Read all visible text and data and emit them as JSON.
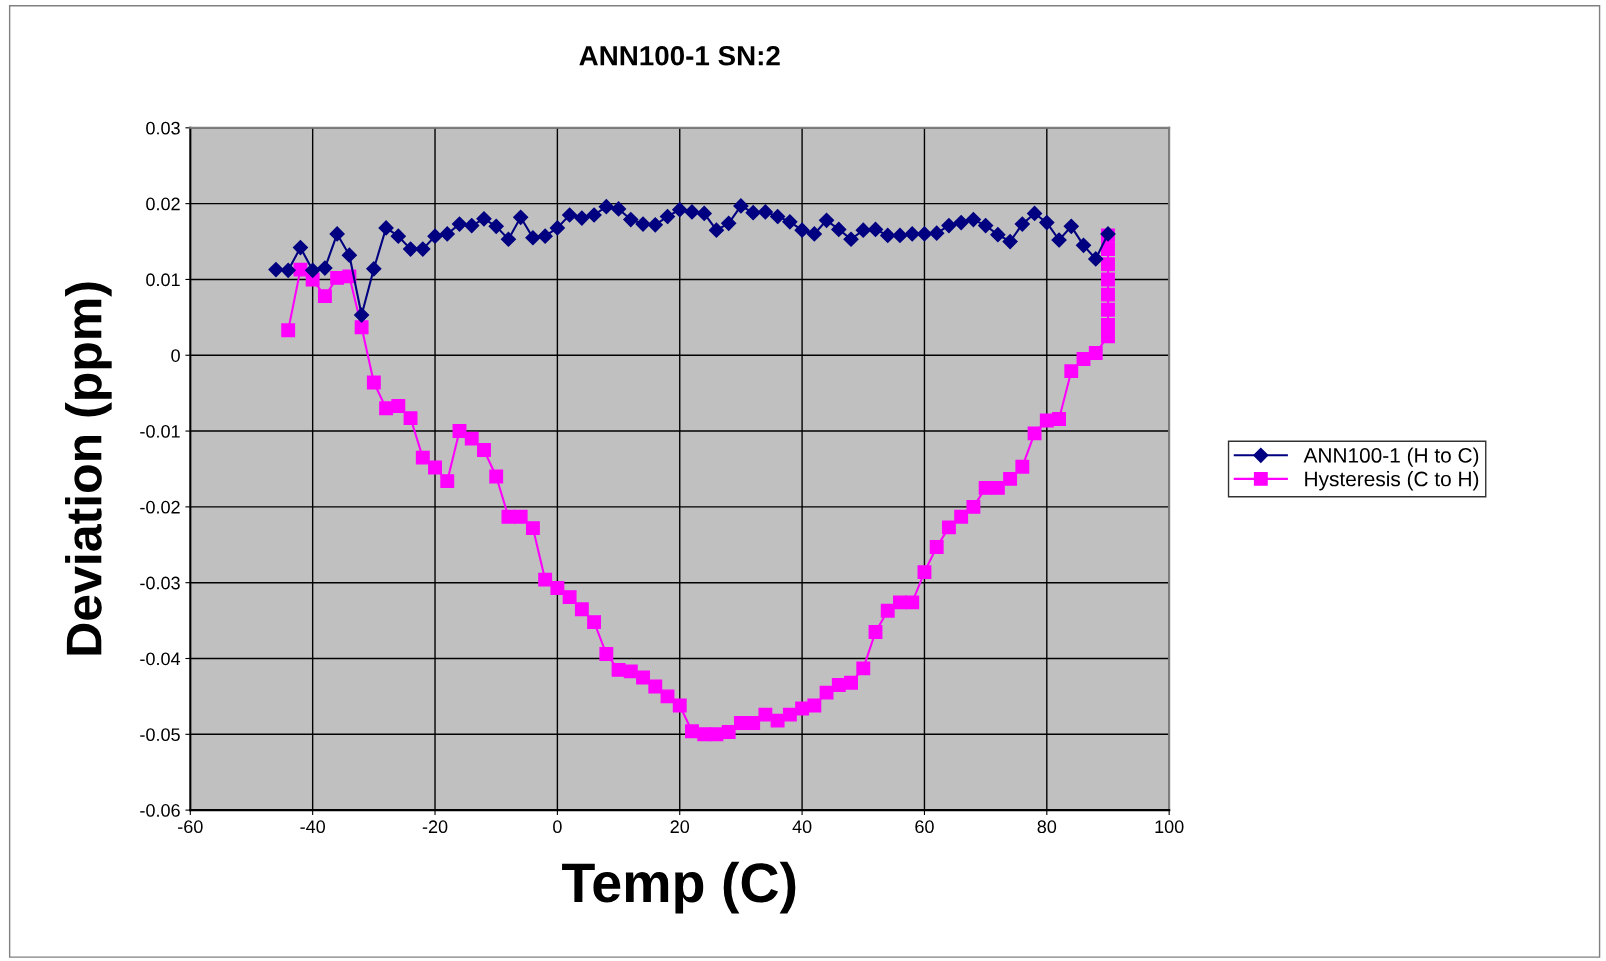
{
  "chart_data": {
    "type": "line",
    "title": "ANN100-1 SN:2",
    "xlabel": "Temp (C)",
    "ylabel": "Deviation (ppm)",
    "xlim": [
      -60,
      100
    ],
    "xticks": [
      -60,
      -40,
      -20,
      0,
      20,
      40,
      60,
      80,
      100
    ],
    "ylim": [
      -0.06,
      0.03
    ],
    "yticks": [
      -0.06,
      -0.05,
      -0.04,
      -0.03,
      -0.02,
      -0.01,
      0,
      0.01,
      0.02,
      0.03
    ],
    "grid": true,
    "legend": "right",
    "line_style": "solid",
    "series": [
      {
        "name": "ANN100-1 (H to C)",
        "color": "#000080",
        "marker": "diamond",
        "x": [
          -46,
          -44,
          -42,
          -40,
          -38,
          -36,
          -34,
          -32,
          -30,
          -28,
          -26,
          -24,
          -22,
          -20,
          -18,
          -16,
          -14,
          -12,
          -10,
          -8,
          -6,
          -4,
          -2,
          0,
          2,
          4,
          6,
          8,
          10,
          12,
          14,
          16,
          18,
          20,
          22,
          24,
          26,
          28,
          30,
          32,
          34,
          36,
          38,
          40,
          42,
          44,
          46,
          48,
          50,
          52,
          54,
          56,
          58,
          60,
          62,
          64,
          66,
          68,
          70,
          72,
          74,
          76,
          78,
          80,
          82,
          84,
          86,
          88,
          90
        ],
        "values": [
          0.0113,
          0.0112,
          0.0142,
          0.0112,
          0.0115,
          0.016,
          0.0132,
          0.0053,
          0.0114,
          0.0168,
          0.0157,
          0.014,
          0.014,
          0.0157,
          0.016,
          0.0173,
          0.0171,
          0.018,
          0.017,
          0.0153,
          0.0182,
          0.0155,
          0.0157,
          0.0168,
          0.0185,
          0.0181,
          0.0185,
          0.0196,
          0.0193,
          0.0179,
          0.0173,
          0.0172,
          0.0183,
          0.0192,
          0.0189,
          0.0187,
          0.0165,
          0.0174,
          0.0197,
          0.0188,
          0.0189,
          0.0183,
          0.0176,
          0.0165,
          0.016,
          0.0178,
          0.0166,
          0.0153,
          0.0165,
          0.0166,
          0.0158,
          0.0158,
          0.016,
          0.016,
          0.0161,
          0.0171,
          0.0175,
          0.0179,
          0.0171,
          0.0159,
          0.015,
          0.0173,
          0.0187,
          0.0175,
          0.0152,
          0.017,
          0.0145,
          0.0127,
          0.016
        ]
      },
      {
        "name": "Hysteresis (C to H)",
        "color": "#ff00ff",
        "marker": "square",
        "x": [
          -44,
          -42,
          -40,
          -38,
          -36,
          -34,
          -32,
          -30,
          -28,
          -26,
          -24,
          -22,
          -20,
          -18,
          -16,
          -14,
          -12,
          -10,
          -8,
          -6,
          -4,
          -2,
          0,
          2,
          4,
          6,
          8,
          10,
          12,
          14,
          16,
          18,
          20,
          22,
          24,
          26,
          28,
          30,
          32,
          34,
          36,
          38,
          40,
          42,
          44,
          46,
          48,
          50,
          52,
          54,
          56,
          58,
          60,
          62,
          64,
          66,
          68,
          70,
          72,
          74,
          76,
          78,
          80,
          82,
          84,
          86,
          88,
          90,
          90,
          90,
          90,
          90,
          90,
          90,
          90
        ],
        "values": [
          0.0033,
          0.0113,
          0.01,
          0.0078,
          0.0102,
          0.0104,
          0.0037,
          -0.0036,
          -0.007,
          -0.0067,
          -0.0083,
          -0.0135,
          -0.0148,
          -0.0166,
          -0.01,
          -0.011,
          -0.0125,
          -0.016,
          -0.0213,
          -0.0213,
          -0.0228,
          -0.0296,
          -0.0307,
          -0.0319,
          -0.0335,
          -0.0352,
          -0.0394,
          -0.0415,
          -0.0417,
          -0.0425,
          -0.0437,
          -0.045,
          -0.0462,
          -0.0496,
          -0.05,
          -0.05,
          -0.0497,
          -0.0485,
          -0.0485,
          -0.0474,
          -0.0482,
          -0.0474,
          -0.0466,
          -0.0462,
          -0.0445,
          -0.0435,
          -0.0432,
          -0.0413,
          -0.0365,
          -0.0337,
          -0.0326,
          -0.0326,
          -0.0286,
          -0.0253,
          -0.0227,
          -0.0213,
          -0.02,
          -0.0175,
          -0.0175,
          -0.0163,
          -0.0147,
          -0.0103,
          -0.0086,
          -0.0084,
          -0.0021,
          -0.0005,
          0.0003,
          0.0025,
          0.004,
          0.006,
          0.008,
          0.01,
          0.012,
          0.014,
          0.0158
        ]
      }
    ]
  }
}
